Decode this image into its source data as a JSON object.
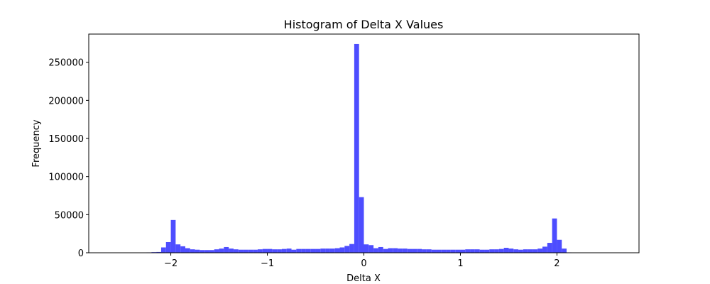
{
  "chart_data": {
    "type": "bar",
    "title": "Histogram of Delta X Values",
    "xlabel": "Delta X",
    "ylabel": "Frequency",
    "xlim": [
      -2.85,
      2.85
    ],
    "ylim": [
      0,
      287000
    ],
    "xticks": [
      -2,
      -1,
      0,
      1,
      2
    ],
    "xtick_labels": [
      "−2",
      "−1",
      "0",
      "1",
      "2"
    ],
    "yticks": [
      0,
      50000,
      100000,
      150000,
      200000,
      250000
    ],
    "ytick_labels": [
      "0",
      "50000",
      "100000",
      "150000",
      "200000",
      "250000"
    ],
    "grid": false,
    "bar_color": "#4d4dff",
    "bin_width": 0.05,
    "bin_edges_start": -2.25,
    "values": [
      500,
      800,
      1000,
      7000,
      14000,
      43000,
      11000,
      8500,
      6000,
      4500,
      4000,
      3500,
      3500,
      3500,
      4500,
      5500,
      7500,
      5500,
      4500,
      4000,
      4000,
      4000,
      4000,
      4500,
      5000,
      5000,
      4500,
      4500,
      5000,
      5500,
      4000,
      5000,
      5000,
      5000,
      5000,
      5000,
      5500,
      5500,
      5500,
      6000,
      7000,
      9000,
      11500,
      274000,
      73000,
      11000,
      10000,
      6000,
      7500,
      5000,
      6000,
      6000,
      5500,
      5500,
      5000,
      5000,
      5000,
      4500,
      4500,
      4000,
      4000,
      4000,
      4000,
      4000,
      4000,
      4000,
      4500,
      4500,
      4500,
      4000,
      4000,
      4500,
      4500,
      5000,
      6500,
      5500,
      4500,
      4000,
      4500,
      4500,
      4500,
      5500,
      8000,
      13000,
      45000,
      17000,
      5500,
      500,
      0,
      0
    ]
  }
}
